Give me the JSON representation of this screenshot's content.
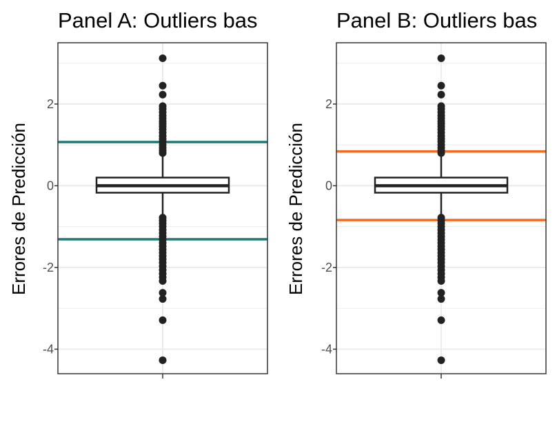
{
  "colors": {
    "panel_a_line": "#1b7a75",
    "panel_b_line": "#f26b21",
    "box": "#222222",
    "points": "#222222",
    "grid": "#ebebeb"
  },
  "chart_data": [
    {
      "type": "boxplot",
      "title": "Panel A: Outliers bas",
      "xlabel": "",
      "ylabel": "Errores de Predicción",
      "ylim": [
        -4.6,
        3.5
      ],
      "yticks": [
        -4,
        -2,
        0,
        2
      ],
      "ytick_labels": [
        "-4",
        "-2",
        "0",
        "2"
      ],
      "grid": true,
      "box": {
        "q1": -0.17,
        "median": 0.0,
        "q3": 0.2,
        "whisker_low": -0.72,
        "whisker_high": 0.74
      },
      "outliers": [
        3.12,
        2.45,
        2.23,
        1.95,
        1.88,
        1.8,
        1.72,
        1.65,
        1.58,
        1.52,
        1.45,
        1.38,
        1.3,
        1.22,
        1.15,
        1.08,
        1.0,
        0.93,
        0.86,
        0.8,
        -0.78,
        -0.85,
        -0.92,
        -1.0,
        -1.08,
        -1.16,
        -1.24,
        -1.32,
        -1.4,
        -1.48,
        -1.56,
        -1.64,
        -1.72,
        -1.8,
        -1.88,
        -1.97,
        -2.06,
        -2.15,
        -2.24,
        -2.33,
        -2.62,
        -2.77,
        -3.29,
        -4.27
      ],
      "hlines": [
        1.07,
        -1.31
      ],
      "hline_color": "#1b7a75"
    },
    {
      "type": "boxplot",
      "title": "Panel B: Outliers bas",
      "xlabel": "",
      "ylabel": "Errores de Predicción",
      "ylim": [
        -4.6,
        3.5
      ],
      "yticks": [
        -4,
        -2,
        0,
        2
      ],
      "ytick_labels": [
        "-4",
        "-2",
        "0",
        "2"
      ],
      "grid": true,
      "box": {
        "q1": -0.17,
        "median": 0.0,
        "q3": 0.2,
        "whisker_low": -0.72,
        "whisker_high": 0.74
      },
      "outliers": [
        3.12,
        2.45,
        2.23,
        1.95,
        1.88,
        1.8,
        1.72,
        1.65,
        1.58,
        1.52,
        1.45,
        1.38,
        1.3,
        1.22,
        1.15,
        1.08,
        1.0,
        0.93,
        0.86,
        0.8,
        -0.78,
        -0.85,
        -0.92,
        -1.0,
        -1.08,
        -1.16,
        -1.24,
        -1.32,
        -1.4,
        -1.48,
        -1.56,
        -1.64,
        -1.72,
        -1.8,
        -1.88,
        -1.97,
        -2.06,
        -2.15,
        -2.24,
        -2.33,
        -2.62,
        -2.77,
        -3.29,
        -4.27
      ],
      "hlines": [
        0.84,
        -0.84
      ],
      "hline_color": "#f26b21"
    }
  ]
}
